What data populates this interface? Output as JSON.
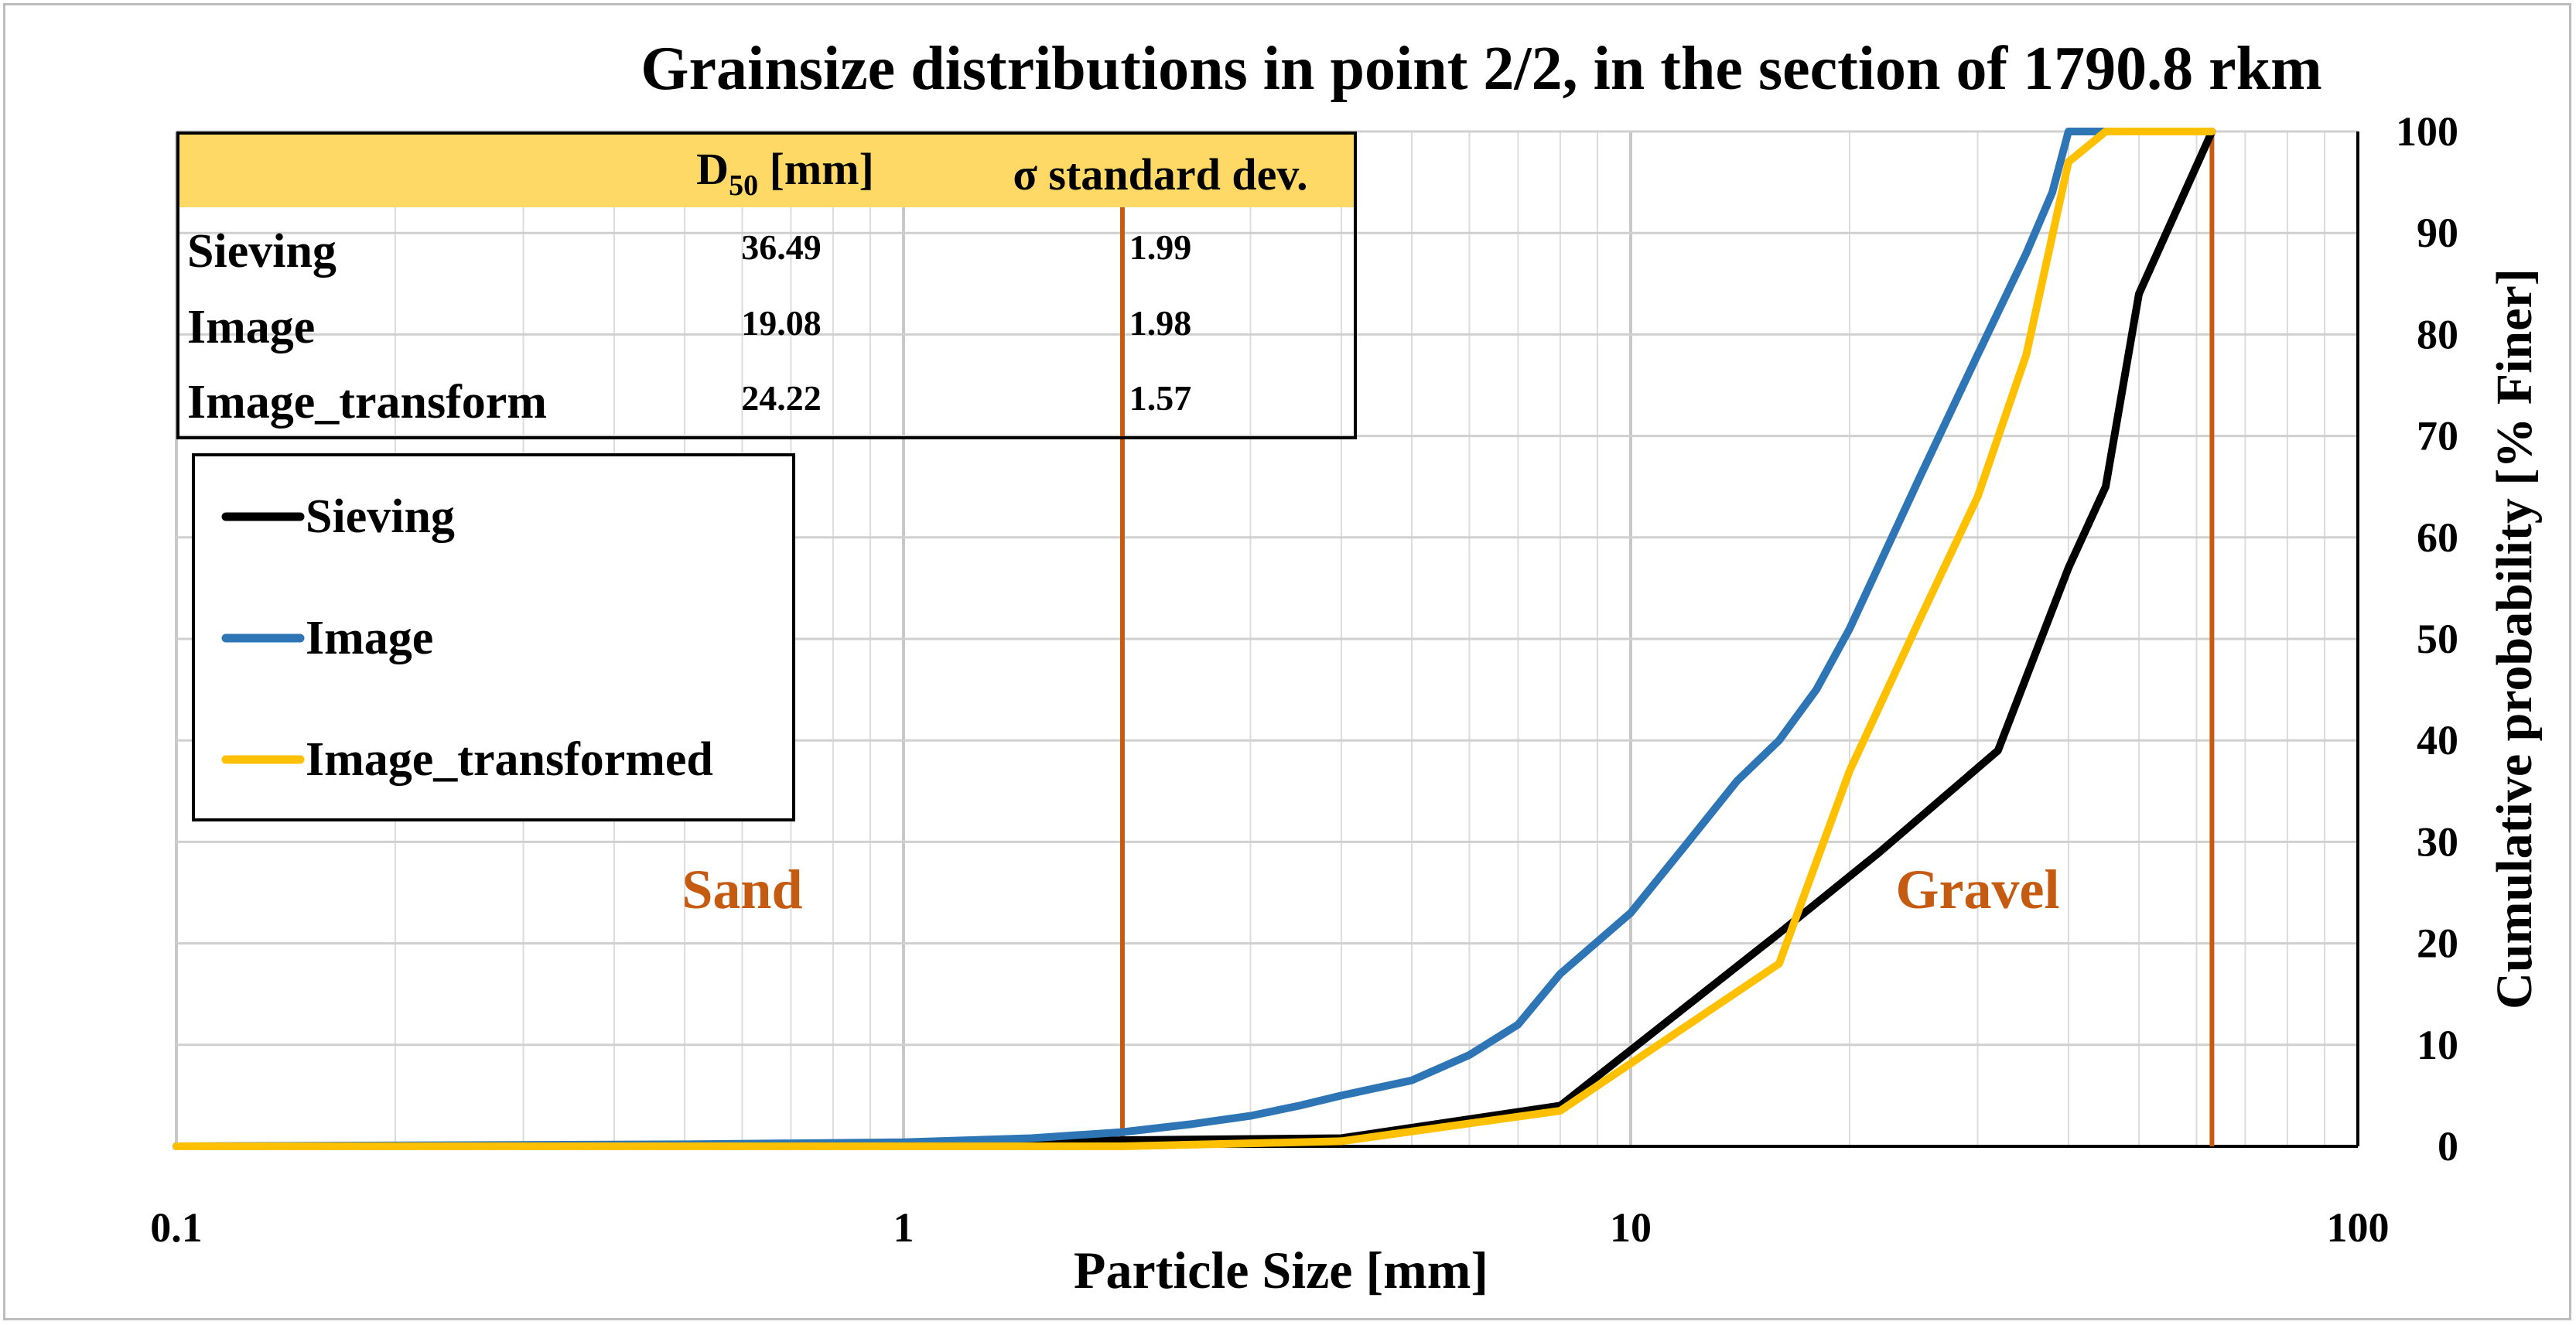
{
  "chart_data": {
    "type": "line",
    "title": "Grainsize distributions in point 2/2, in the section of 1790.8 rkm",
    "xlabel": "Particle Size [mm]",
    "ylabel": "Cumulative probability [% Finer]",
    "xscale": "log",
    "xlim": [
      0.1,
      100
    ],
    "ylim": [
      0,
      100
    ],
    "x_ticks": [
      "0.1",
      "1",
      "10",
      "100"
    ],
    "y_ticks": [
      "0",
      "10",
      "20",
      "30",
      "40",
      "50",
      "60",
      "70",
      "80",
      "90",
      "100"
    ],
    "grid": true,
    "y_axis_position": "right",
    "series": [
      {
        "name": "Sieving",
        "color": "#000000",
        "x": [
          0.1,
          0.5,
          1,
          2,
          4,
          8,
          16,
          22,
          32,
          40,
          45,
          50,
          63
        ],
        "y": [
          0,
          0.1,
          0.2,
          0.6,
          0.8,
          4,
          21,
          29,
          39,
          57,
          65,
          84,
          100
        ]
      },
      {
        "name": "Image",
        "color": "#2E75B6",
        "x": [
          0.1,
          0.5,
          1,
          1.5,
          2,
          2.5,
          3,
          3.5,
          4,
          5,
          6,
          7,
          8,
          10,
          12,
          14,
          16,
          18,
          20,
          25,
          30,
          35,
          38,
          40,
          45
        ],
        "y": [
          0,
          0.2,
          0.4,
          0.8,
          1.4,
          2.2,
          3,
          4,
          5,
          6.5,
          9,
          12,
          17,
          23,
          30,
          36,
          40,
          45,
          51,
          66,
          78,
          88,
          94,
          100,
          100
        ]
      },
      {
        "name": "Image_transformed",
        "color": "#FFC000",
        "x": [
          0.1,
          0.5,
          1,
          2,
          4,
          8,
          16,
          20,
          25,
          30,
          35,
          40,
          45,
          50,
          63
        ],
        "y": [
          0,
          0,
          0,
          0,
          0.5,
          3.5,
          18,
          37,
          52,
          64,
          78,
          97,
          100,
          100,
          100
        ]
      }
    ],
    "reference_lines": [
      {
        "x": 2,
        "color": "#C55A11"
      },
      {
        "x": 63,
        "color": "#C55A11"
      }
    ],
    "annotations": [
      {
        "text": "Sand",
        "x": 0.6,
        "y": 25,
        "color": "#C55A11"
      },
      {
        "text": "Gravel",
        "x": 30,
        "y": 25,
        "color": "#C55A11"
      }
    ],
    "legend": {
      "placement": "upper-left",
      "entries": [
        "Sieving",
        "Image",
        "Image_transformed"
      ]
    },
    "stats_table": {
      "headers": [
        "",
        "D50 [mm]",
        "σ standard dev."
      ],
      "header_d50": {
        "base": "D",
        "sub": "50",
        "unit": " [mm]"
      },
      "header_sigma": "σ standard dev.",
      "header_fill": "#FFD966",
      "rows": [
        {
          "name": "Sieving",
          "d50": "36.49",
          "sigma": "1.99"
        },
        {
          "name": "Image",
          "d50": "19.08",
          "sigma": "1.98"
        },
        {
          "name": "Image_transform",
          "d50": "24.22",
          "sigma": "1.57"
        }
      ]
    }
  }
}
